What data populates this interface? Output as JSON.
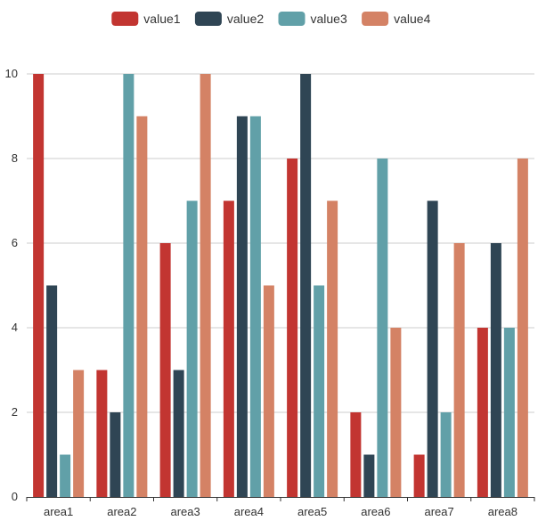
{
  "chart_data": {
    "type": "bar",
    "title": "",
    "xlabel": "",
    "ylabel": "",
    "ylim": [
      0,
      10
    ],
    "yticks": [
      0,
      2,
      4,
      6,
      8,
      10
    ],
    "categories": [
      "area1",
      "area2",
      "area3",
      "area4",
      "area5",
      "area6",
      "area7",
      "area8"
    ],
    "series": [
      {
        "name": "value1",
        "color": "#c23531",
        "values": [
          10,
          3,
          6,
          7,
          8,
          2,
          1,
          4
        ]
      },
      {
        "name": "value2",
        "color": "#2f4554",
        "values": [
          5,
          2,
          3,
          9,
          10,
          1,
          7,
          6
        ]
      },
      {
        "name": "value3",
        "color": "#61a0a8",
        "values": [
          1,
          10,
          7,
          9,
          5,
          8,
          2,
          4
        ]
      },
      {
        "name": "value4",
        "color": "#d48265",
        "values": [
          3,
          9,
          10,
          5,
          7,
          4,
          6,
          8
        ]
      }
    ],
    "legend_position": "top-center",
    "grid": true
  }
}
